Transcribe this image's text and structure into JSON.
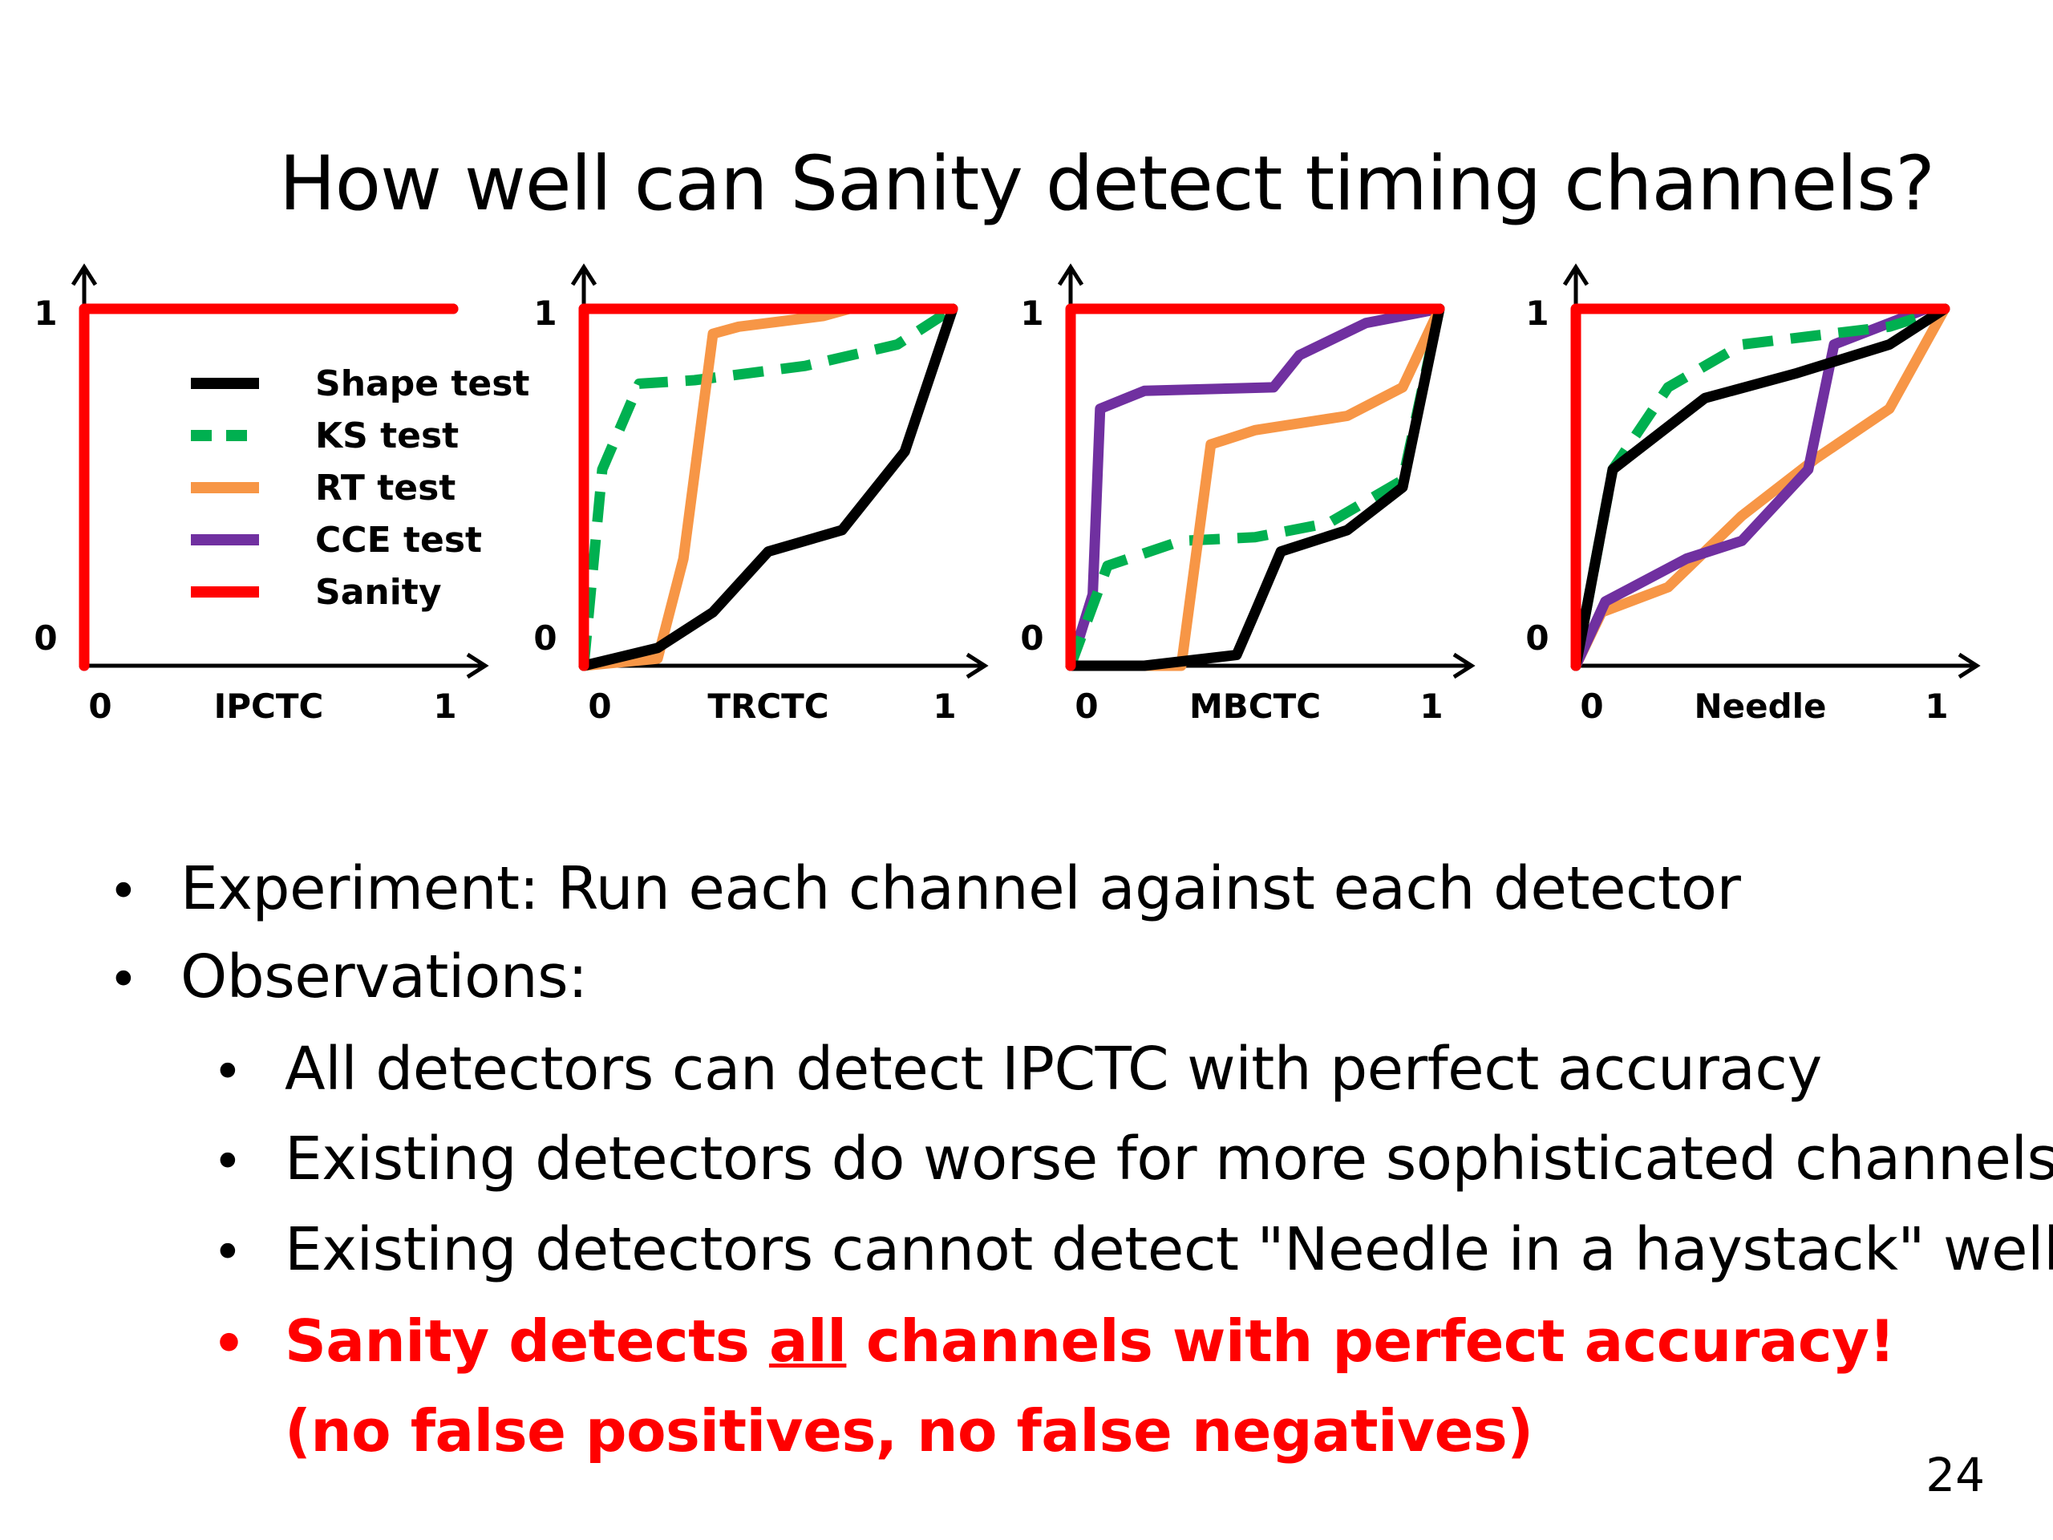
{
  "slide": {
    "title": "How well can Sanity detect timing channels?",
    "page_number": "24"
  },
  "legend": [
    {
      "name": "Shape test",
      "color": "#000000",
      "dash": "solid"
    },
    {
      "name": "KS test",
      "color": "#00b050",
      "dash": "dashed"
    },
    {
      "name": "RT test",
      "color": "#f79646",
      "dash": "solid"
    },
    {
      "name": "CCE test",
      "color": "#7030a0",
      "dash": "solid"
    },
    {
      "name": "Sanity",
      "color": "#ff0000",
      "dash": "solid"
    }
  ],
  "chart_data": [
    {
      "type": "line",
      "xlabel": "IPCTC",
      "x_ticks": [
        "0",
        "1"
      ],
      "y_ticks": [
        "0",
        "1"
      ],
      "xlim": [
        0,
        1
      ],
      "ylim": [
        0,
        1
      ],
      "series": [
        {
          "name": "CCE test",
          "points": [
            [
              0,
              0
            ],
            [
              0,
              1
            ],
            [
              1,
              1
            ]
          ]
        },
        {
          "name": "Sanity",
          "points": [
            [
              0,
              0
            ],
            [
              0,
              1
            ],
            [
              1,
              1
            ]
          ]
        }
      ]
    },
    {
      "type": "line",
      "xlabel": "TRCTC",
      "x_ticks": [
        "0",
        "1"
      ],
      "y_ticks": [
        "0",
        "1"
      ],
      "xlim": [
        0,
        1
      ],
      "ylim": [
        0,
        1
      ],
      "series": [
        {
          "name": "CCE test",
          "points": [
            [
              0,
              0
            ],
            [
              0,
              1
            ],
            [
              1,
              1
            ]
          ]
        },
        {
          "name": "KS test",
          "points": [
            [
              0,
              0
            ],
            [
              0.05,
              0.55
            ],
            [
              0.15,
              0.79
            ],
            [
              0.3,
              0.8
            ],
            [
              0.6,
              0.84
            ],
            [
              0.85,
              0.9
            ],
            [
              1,
              1
            ]
          ]
        },
        {
          "name": "RT test",
          "points": [
            [
              0,
              0
            ],
            [
              0.2,
              0.02
            ],
            [
              0.27,
              0.3
            ],
            [
              0.35,
              0.93
            ],
            [
              0.42,
              0.95
            ],
            [
              0.65,
              0.98
            ],
            [
              0.72,
              1
            ],
            [
              1,
              1
            ]
          ]
        },
        {
          "name": "Shape test",
          "points": [
            [
              0,
              0
            ],
            [
              0.2,
              0.05
            ],
            [
              0.35,
              0.15
            ],
            [
              0.5,
              0.32
            ],
            [
              0.7,
              0.38
            ],
            [
              0.87,
              0.6
            ],
            [
              1,
              1
            ]
          ]
        },
        {
          "name": "Sanity",
          "points": [
            [
              0,
              0
            ],
            [
              0,
              1
            ],
            [
              1,
              1
            ]
          ]
        }
      ]
    },
    {
      "type": "line",
      "xlabel": "MBCTC",
      "x_ticks": [
        "0",
        "1"
      ],
      "y_ticks": [
        "0",
        "1"
      ],
      "xlim": [
        0,
        1
      ],
      "ylim": [
        0,
        1
      ],
      "series": [
        {
          "name": "CCE test",
          "points": [
            [
              0,
              0
            ],
            [
              0.06,
              0.2
            ],
            [
              0.08,
              0.72
            ],
            [
              0.2,
              0.77
            ],
            [
              0.55,
              0.78
            ],
            [
              0.62,
              0.87
            ],
            [
              0.8,
              0.96
            ],
            [
              1,
              1
            ]
          ]
        },
        {
          "name": "KS test",
          "points": [
            [
              0,
              0
            ],
            [
              0.1,
              0.28
            ],
            [
              0.3,
              0.35
            ],
            [
              0.5,
              0.36
            ],
            [
              0.7,
              0.4
            ],
            [
              0.9,
              0.52
            ],
            [
              1,
              1
            ]
          ]
        },
        {
          "name": "RT test",
          "points": [
            [
              0,
              0
            ],
            [
              0.3,
              0
            ],
            [
              0.38,
              0.62
            ],
            [
              0.5,
              0.66
            ],
            [
              0.75,
              0.7
            ],
            [
              0.9,
              0.78
            ],
            [
              1,
              1
            ]
          ]
        },
        {
          "name": "Shape test",
          "points": [
            [
              0,
              0
            ],
            [
              0.2,
              0
            ],
            [
              0.45,
              0.03
            ],
            [
              0.5,
              0.15
            ],
            [
              0.57,
              0.32
            ],
            [
              0.75,
              0.38
            ],
            [
              0.9,
              0.5
            ],
            [
              1,
              1
            ]
          ]
        },
        {
          "name": "Sanity",
          "points": [
            [
              0,
              0
            ],
            [
              0,
              1
            ],
            [
              1,
              1
            ]
          ]
        }
      ]
    },
    {
      "type": "line",
      "xlabel": "Needle",
      "x_ticks": [
        "0",
        "1"
      ],
      "y_ticks": [
        "0",
        "1"
      ],
      "xlim": [
        0,
        1
      ],
      "ylim": [
        0,
        1
      ],
      "series": [
        {
          "name": "RT test",
          "points": [
            [
              0,
              0
            ],
            [
              0.07,
              0.15
            ],
            [
              0.25,
              0.22
            ],
            [
              0.45,
              0.42
            ],
            [
              0.65,
              0.58
            ],
            [
              0.85,
              0.72
            ],
            [
              1,
              1
            ]
          ]
        },
        {
          "name": "CCE test",
          "points": [
            [
              0,
              0
            ],
            [
              0.08,
              0.18
            ],
            [
              0.3,
              0.3
            ],
            [
              0.45,
              0.35
            ],
            [
              0.63,
              0.55
            ],
            [
              0.7,
              0.9
            ],
            [
              0.95,
              1
            ]
          ]
        },
        {
          "name": "KS test",
          "points": [
            [
              0,
              0
            ],
            [
              0.1,
              0.55
            ],
            [
              0.25,
              0.78
            ],
            [
              0.45,
              0.9
            ],
            [
              0.85,
              0.95
            ],
            [
              1,
              1
            ]
          ]
        },
        {
          "name": "Shape test",
          "points": [
            [
              0,
              0
            ],
            [
              0.1,
              0.55
            ],
            [
              0.35,
              0.75
            ],
            [
              0.6,
              0.82
            ],
            [
              0.85,
              0.9
            ],
            [
              1,
              1
            ]
          ]
        },
        {
          "name": "Sanity",
          "points": [
            [
              0,
              0
            ],
            [
              0,
              1
            ],
            [
              1,
              1
            ]
          ]
        }
      ]
    }
  ],
  "bullets": [
    {
      "text": "Experiment: Run each channel against each detector",
      "level": 1
    },
    {
      "text": "Observations:",
      "level": 1
    },
    {
      "text": "All detectors can detect IPCTC with perfect accuracy",
      "level": 2
    },
    {
      "text": "Existing detectors do worse for more sophisticated channels",
      "level": 2
    },
    {
      "text": "Existing detectors cannot detect \"Needle in a haystack\" well",
      "level": 2
    }
  ],
  "highlight": {
    "before": "Sanity detects ",
    "underlined": "all",
    "after": " channels with perfect accuracy!",
    "line2": "(no false positives, no false negatives)"
  }
}
